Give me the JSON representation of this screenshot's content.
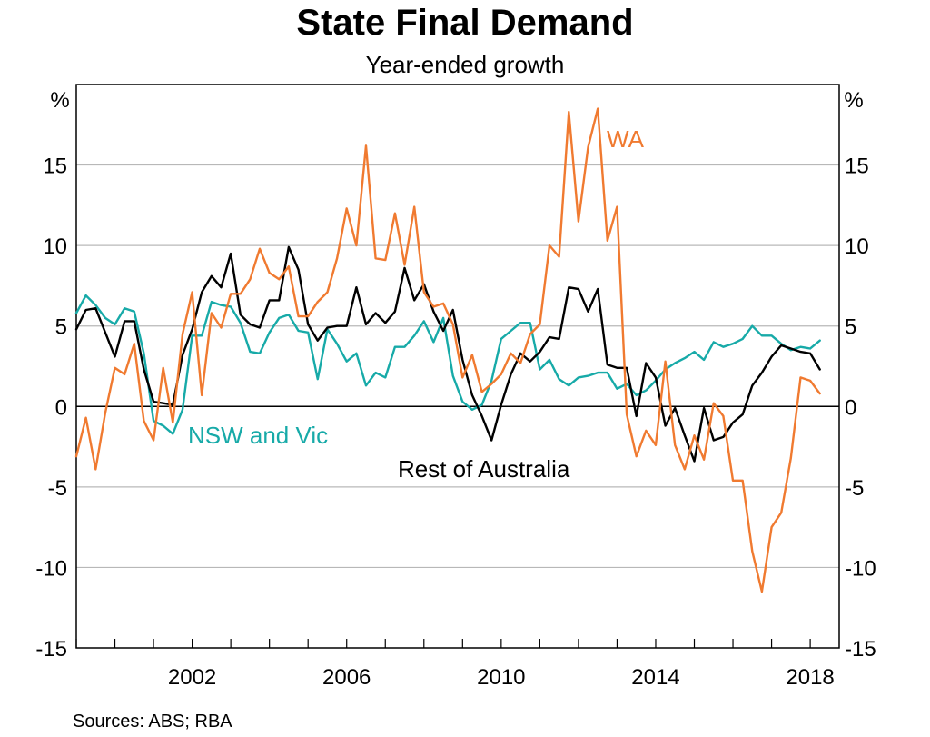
{
  "chart_data": {
    "type": "line",
    "title": "State Final Demand",
    "subtitle": "Year-ended growth",
    "y_unit_left": "%",
    "y_unit_right": "%",
    "ylim": [
      -15,
      20
    ],
    "y_ticks": [
      15,
      10,
      5,
      0,
      -5,
      -10,
      -15
    ],
    "y_tick_labels": [
      "15",
      "10",
      "5",
      "0",
      "-5",
      "-10",
      "-15"
    ],
    "xlim": [
      1999,
      2018.75
    ],
    "x_ticks": [
      2002,
      2006,
      2010,
      2014,
      2018
    ],
    "x_tick_labels": [
      "2002",
      "2006",
      "2010",
      "2014",
      "2018"
    ],
    "grid": true,
    "source": "Sources: ABS; RBA",
    "series": [
      {
        "name": "NSW and Vic",
        "color": "#17aaa8",
        "x": [
          1999.0,
          1999.25,
          1999.5,
          1999.75,
          2000.0,
          2000.25,
          2000.5,
          2000.75,
          2001.0,
          2001.25,
          2001.5,
          2001.75,
          2002.0,
          2002.25,
          2002.5,
          2002.75,
          2003.0,
          2003.25,
          2003.5,
          2003.75,
          2004.0,
          2004.25,
          2004.5,
          2004.75,
          2005.0,
          2005.25,
          2005.5,
          2005.75,
          2006.0,
          2006.25,
          2006.5,
          2006.75,
          2007.0,
          2007.25,
          2007.5,
          2007.75,
          2008.0,
          2008.25,
          2008.5,
          2008.75,
          2009.0,
          2009.25,
          2009.5,
          2009.75,
          2010.0,
          2010.25,
          2010.5,
          2010.75,
          2011.0,
          2011.25,
          2011.5,
          2011.75,
          2012.0,
          2012.25,
          2012.5,
          2012.75,
          2013.0,
          2013.25,
          2013.5,
          2013.75,
          2014.0,
          2014.25,
          2014.5,
          2014.75,
          2015.0,
          2015.25,
          2015.5,
          2015.75,
          2016.0,
          2016.25,
          2016.5,
          2016.75,
          2017.0,
          2017.25,
          2017.5,
          2017.75,
          2018.0,
          2018.25
        ],
        "values": [
          5.8,
          6.9,
          6.3,
          5.5,
          5.1,
          6.1,
          5.9,
          3.3,
          -0.9,
          -1.2,
          -1.7,
          -0.2,
          4.4,
          4.4,
          6.5,
          6.3,
          6.2,
          5.2,
          3.4,
          3.3,
          4.6,
          5.5,
          5.7,
          4.7,
          4.6,
          1.7,
          4.8,
          3.9,
          2.8,
          3.3,
          1.3,
          2.1,
          1.8,
          3.7,
          3.7,
          4.4,
          5.3,
          4.0,
          5.5,
          1.9,
          0.3,
          -0.2,
          0.1,
          1.6,
          4.2,
          4.7,
          5.2,
          5.2,
          2.3,
          2.9,
          1.7,
          1.3,
          1.8,
          1.9,
          2.1,
          2.1,
          1.1,
          1.4,
          0.7,
          1.0,
          1.6,
          2.3,
          2.7,
          3.0,
          3.4,
          2.9,
          4.0,
          3.7,
          3.9,
          4.2,
          5.0,
          4.4,
          4.4,
          3.9,
          3.5,
          3.7,
          3.6,
          4.1
        ]
      },
      {
        "name": "Rest of Australia",
        "color": "#000000",
        "x": [
          1999.0,
          1999.25,
          1999.5,
          1999.75,
          2000.0,
          2000.25,
          2000.5,
          2000.75,
          2001.0,
          2001.25,
          2001.5,
          2001.75,
          2002.0,
          2002.25,
          2002.5,
          2002.75,
          2003.0,
          2003.25,
          2003.5,
          2003.75,
          2004.0,
          2004.25,
          2004.5,
          2004.75,
          2005.0,
          2005.25,
          2005.5,
          2005.75,
          2006.0,
          2006.25,
          2006.5,
          2006.75,
          2007.0,
          2007.25,
          2007.5,
          2007.75,
          2008.0,
          2008.25,
          2008.5,
          2008.75,
          2009.0,
          2009.25,
          2009.5,
          2009.75,
          2010.0,
          2010.25,
          2010.5,
          2010.75,
          2011.0,
          2011.25,
          2011.5,
          2011.75,
          2012.0,
          2012.25,
          2012.5,
          2012.75,
          2013.0,
          2013.25,
          2013.5,
          2013.75,
          2014.0,
          2014.25,
          2014.5,
          2014.75,
          2015.0,
          2015.25,
          2015.5,
          2015.75,
          2016.0,
          2016.25,
          2016.5,
          2016.75,
          2017.0,
          2017.25,
          2017.5,
          2017.75,
          2018.0,
          2018.25
        ],
        "values": [
          4.8,
          6.0,
          6.1,
          4.6,
          3.1,
          5.3,
          5.3,
          2.3,
          0.3,
          0.2,
          0.1,
          3.2,
          4.8,
          7.1,
          8.1,
          7.4,
          9.5,
          5.7,
          5.1,
          4.9,
          6.6,
          6.6,
          9.9,
          8.5,
          5.1,
          4.1,
          4.9,
          5.0,
          5.0,
          7.4,
          5.1,
          5.8,
          5.2,
          5.9,
          8.6,
          6.6,
          7.6,
          5.9,
          4.7,
          6.0,
          2.9,
          0.7,
          -0.6,
          -2.1,
          0.1,
          2.0,
          3.3,
          2.8,
          3.4,
          4.3,
          4.2,
          7.4,
          7.3,
          5.9,
          7.3,
          2.6,
          2.4,
          2.4,
          -0.6,
          2.7,
          1.8,
          -1.2,
          -0.1,
          -1.8,
          -3.4,
          -0.1,
          -2.1,
          -1.9,
          -1.0,
          -0.5,
          1.3,
          2.1,
          3.1,
          3.8,
          3.6,
          3.4,
          3.3,
          2.3
        ]
      },
      {
        "name": "WA",
        "color": "#f07a30",
        "x": [
          1999.0,
          1999.25,
          1999.5,
          1999.75,
          2000.0,
          2000.25,
          2000.5,
          2000.75,
          2001.0,
          2001.25,
          2001.5,
          2001.75,
          2002.0,
          2002.25,
          2002.5,
          2002.75,
          2003.0,
          2003.25,
          2003.5,
          2003.75,
          2004.0,
          2004.25,
          2004.5,
          2004.75,
          2005.0,
          2005.25,
          2005.5,
          2005.75,
          2006.0,
          2006.25,
          2006.5,
          2006.75,
          2007.0,
          2007.25,
          2007.5,
          2007.75,
          2008.0,
          2008.25,
          2008.5,
          2008.75,
          2009.0,
          2009.25,
          2009.5,
          2009.75,
          2010.0,
          2010.25,
          2010.5,
          2010.75,
          2011.0,
          2011.25,
          2011.5,
          2011.75,
          2012.0,
          2012.25,
          2012.5,
          2012.75,
          2013.0,
          2013.25,
          2013.5,
          2013.75,
          2014.0,
          2014.25,
          2014.5,
          2014.75,
          2015.0,
          2015.25,
          2015.5,
          2015.75,
          2016.0,
          2016.25,
          2016.5,
          2016.75,
          2017.0,
          2017.25,
          2017.5,
          2017.75,
          2018.0,
          2018.25
        ],
        "values": [
          -3.1,
          -0.7,
          -3.9,
          -0.4,
          2.4,
          2.0,
          3.9,
          -0.9,
          -2.1,
          2.4,
          -1.0,
          4.5,
          7.1,
          0.7,
          5.8,
          4.9,
          7.0,
          7.0,
          7.9,
          9.8,
          8.3,
          7.9,
          8.7,
          5.6,
          5.6,
          6.5,
          7.1,
          9.2,
          12.3,
          10.0,
          16.2,
          9.2,
          9.1,
          12.0,
          8.8,
          12.4,
          7.1,
          6.2,
          6.4,
          5.1,
          1.8,
          3.2,
          0.9,
          1.4,
          2.0,
          3.3,
          2.7,
          4.5,
          5.1,
          10.0,
          9.3,
          18.3,
          11.5,
          16.1,
          18.5,
          10.3,
          12.4,
          -0.5,
          -3.1,
          -1.5,
          -2.4,
          2.8,
          -2.4,
          -3.9,
          -1.8,
          -3.3,
          0.2,
          -0.6,
          -4.6,
          -4.6,
          -9.0,
          -11.5,
          -7.5,
          -6.6,
          -3.2,
          1.8,
          1.6,
          0.8
        ]
      }
    ],
    "series_labels": [
      "NSW and Vic",
      "Rest of Australia",
      "WA"
    ]
  }
}
